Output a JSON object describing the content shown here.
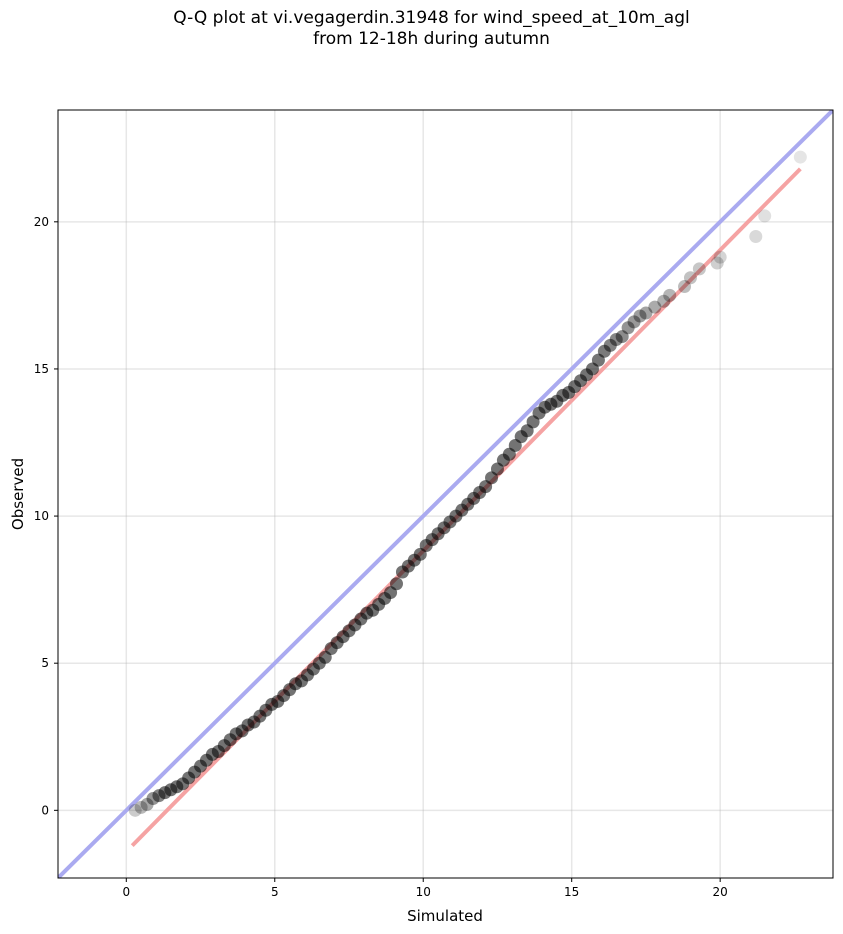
{
  "chart_data": {
    "type": "scatter",
    "title_line1": "Q-Q plot at vi.vegagerdin.31948 for wind_speed_at_10m_agl",
    "title_line2": "from 12-18h during autumn",
    "xlabel": "Simulated",
    "ylabel": "Observed",
    "xlim": [
      -2.3,
      23.8
    ],
    "ylim": [
      -2.3,
      23.8
    ],
    "xticks": [
      0,
      5,
      10,
      15,
      20
    ],
    "yticks": [
      0,
      5,
      10,
      15,
      20
    ],
    "grid": true,
    "series": [
      {
        "marker": "circle",
        "color": "#000000",
        "points": [
          [
            0.3,
            0.0
          ],
          [
            0.5,
            0.1
          ],
          [
            0.7,
            0.2
          ],
          [
            0.9,
            0.4
          ],
          [
            1.1,
            0.5
          ],
          [
            1.3,
            0.6
          ],
          [
            1.5,
            0.7
          ],
          [
            1.7,
            0.8
          ],
          [
            1.9,
            0.9
          ],
          [
            2.1,
            1.1
          ],
          [
            2.3,
            1.3
          ],
          [
            2.5,
            1.5
          ],
          [
            2.7,
            1.7
          ],
          [
            2.9,
            1.9
          ],
          [
            3.1,
            2.0
          ],
          [
            3.3,
            2.2
          ],
          [
            3.5,
            2.4
          ],
          [
            3.7,
            2.6
          ],
          [
            3.9,
            2.7
          ],
          [
            4.1,
            2.9
          ],
          [
            4.3,
            3.0
          ],
          [
            4.5,
            3.2
          ],
          [
            4.7,
            3.4
          ],
          [
            4.9,
            3.6
          ],
          [
            5.1,
            3.7
          ],
          [
            5.3,
            3.9
          ],
          [
            5.5,
            4.1
          ],
          [
            5.7,
            4.3
          ],
          [
            5.9,
            4.4
          ],
          [
            6.1,
            4.6
          ],
          [
            6.3,
            4.8
          ],
          [
            6.5,
            5.0
          ],
          [
            6.7,
            5.2
          ],
          [
            6.9,
            5.5
          ],
          [
            7.1,
            5.7
          ],
          [
            7.3,
            5.9
          ],
          [
            7.5,
            6.1
          ],
          [
            7.7,
            6.3
          ],
          [
            7.9,
            6.5
          ],
          [
            8.1,
            6.7
          ],
          [
            8.3,
            6.8
          ],
          [
            8.5,
            7.0
          ],
          [
            8.7,
            7.2
          ],
          [
            8.9,
            7.4
          ],
          [
            9.1,
            7.7
          ],
          [
            9.3,
            8.1
          ],
          [
            9.5,
            8.3
          ],
          [
            9.7,
            8.5
          ],
          [
            9.9,
            8.7
          ],
          [
            10.1,
            9.0
          ],
          [
            10.3,
            9.2
          ],
          [
            10.5,
            9.4
          ],
          [
            10.7,
            9.6
          ],
          [
            10.9,
            9.8
          ],
          [
            11.1,
            10.0
          ],
          [
            11.3,
            10.2
          ],
          [
            11.5,
            10.4
          ],
          [
            11.7,
            10.6
          ],
          [
            11.9,
            10.8
          ],
          [
            12.1,
            11.0
          ],
          [
            12.3,
            11.3
          ],
          [
            12.5,
            11.6
          ],
          [
            12.7,
            11.9
          ],
          [
            12.9,
            12.1
          ],
          [
            13.1,
            12.4
          ],
          [
            13.3,
            12.7
          ],
          [
            13.5,
            12.9
          ],
          [
            13.7,
            13.2
          ],
          [
            13.9,
            13.5
          ],
          [
            14.1,
            13.7
          ],
          [
            14.3,
            13.8
          ],
          [
            14.5,
            13.9
          ],
          [
            14.7,
            14.1
          ],
          [
            14.9,
            14.2
          ],
          [
            15.1,
            14.4
          ],
          [
            15.3,
            14.6
          ],
          [
            15.5,
            14.8
          ],
          [
            15.7,
            15.0
          ],
          [
            15.9,
            15.3
          ],
          [
            16.1,
            15.6
          ],
          [
            16.3,
            15.8
          ],
          [
            16.5,
            16.0
          ],
          [
            16.7,
            16.1
          ],
          [
            16.9,
            16.4
          ],
          [
            17.1,
            16.6
          ],
          [
            17.3,
            16.8
          ],
          [
            17.5,
            16.9
          ],
          [
            17.8,
            17.1
          ],
          [
            18.1,
            17.3
          ],
          [
            18.3,
            17.5
          ],
          [
            18.8,
            17.8
          ],
          [
            19.0,
            18.1
          ],
          [
            19.3,
            18.4
          ],
          [
            19.9,
            18.6
          ],
          [
            20.0,
            18.8
          ],
          [
            21.2,
            19.5
          ],
          [
            21.5,
            20.2
          ],
          [
            22.7,
            22.2
          ]
        ]
      }
    ],
    "reference_lines": [
      {
        "kind": "identity",
        "color": "#aaaaf0",
        "x": [
          -2.3,
          23.8
        ],
        "y": [
          -2.3,
          23.8
        ]
      },
      {
        "kind": "fit",
        "color": "#f5a3a3",
        "x": [
          0.2,
          22.7
        ],
        "y": [
          -1.2,
          21.8
        ]
      }
    ]
  }
}
